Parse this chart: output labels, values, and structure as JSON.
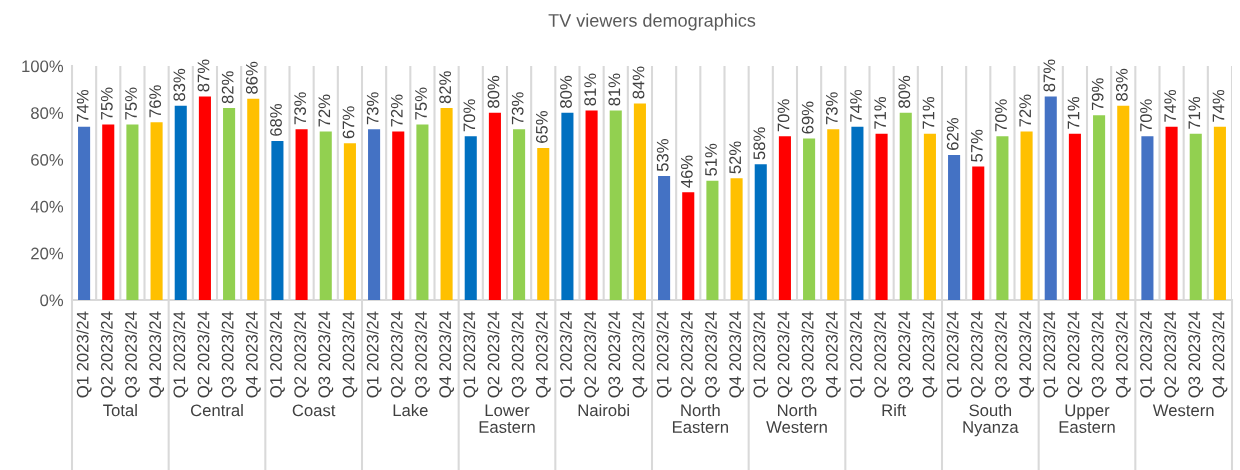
{
  "chart_data": {
    "type": "bar",
    "title": "TV viewers demographics",
    "categories": [
      "Total",
      "Central",
      "Coast",
      "Lake",
      "Lower\nEastern",
      "Nairobi",
      "North\nEastern",
      "North\nWestern",
      "Rift",
      "South\nNyanza",
      "Upper\nEastern",
      "Western"
    ],
    "series": [
      {
        "name": "Q1 2023/24",
        "colors": [
          "#4472c4",
          "#0070c0",
          "#0070c0",
          "#4472c4",
          "#0070c0",
          "#0070c0",
          "#4472c4",
          "#0070c0",
          "#0070c0",
          "#4472c4",
          "#4472c4",
          "#4472c4"
        ],
        "values": [
          74,
          83,
          68,
          73,
          70,
          80,
          53,
          58,
          74,
          62,
          87,
          70
        ],
        "value_labels": [
          "74%",
          "83%",
          "68%",
          "73%",
          "70%",
          "80%",
          "53%",
          "58%",
          "74%",
          "62%",
          "87%",
          "70%"
        ]
      },
      {
        "name": "Q2 2023/24",
        "color": "#ff0000",
        "values": [
          75,
          87,
          73,
          72,
          80,
          81,
          46,
          70,
          71,
          57,
          71,
          74
        ],
        "value_labels": [
          "75%",
          "87%",
          "73%",
          "72%",
          "80%",
          "81%",
          "46%",
          "70%",
          "71%",
          "57%",
          "71%",
          "74%"
        ]
      },
      {
        "name": "Q3 2023/24",
        "color": "#92d050",
        "values": [
          75,
          82,
          72,
          75,
          73,
          81,
          51,
          69,
          80,
          70,
          79,
          71
        ],
        "value_labels": [
          "75%",
          "82%",
          "72%",
          "75%",
          "73%",
          "81%",
          "51%",
          "69%",
          "80%",
          "70%",
          "79%",
          "71%"
        ]
      },
      {
        "name": "Q4 2023/24",
        "color": "#ffc000",
        "values": [
          76,
          86,
          67,
          82,
          65,
          84,
          52,
          73,
          71,
          72,
          83,
          74
        ],
        "value_labels": [
          "76%",
          "86%",
          "67%",
          "82%",
          "65%",
          "84%",
          "52%",
          "73%",
          "71%",
          "72%",
          "83%",
          "74%"
        ]
      }
    ],
    "ylim": [
      0,
      100
    ],
    "yticks": [
      {
        "value": 0,
        "label": "0%"
      },
      {
        "value": 20,
        "label": "20%"
      },
      {
        "value": 40,
        "label": "40%"
      },
      {
        "value": 60,
        "label": "60%"
      },
      {
        "value": 80,
        "label": "80%"
      },
      {
        "value": 100,
        "label": "100%"
      }
    ],
    "grid": "x"
  }
}
